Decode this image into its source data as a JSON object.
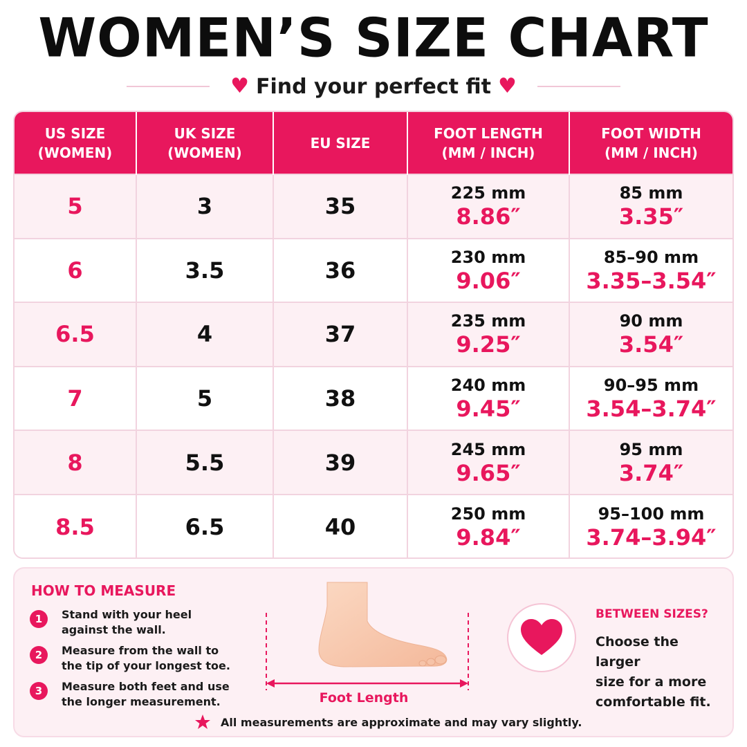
{
  "header": {
    "title": "WOMEN’S SIZE CHART",
    "subtitle": "Find your perfect fit"
  },
  "colors": {
    "accent": "#e8175d",
    "row_alt": "#fdf0f4",
    "border": "#f2d3df",
    "text": "#111111"
  },
  "table": {
    "headers": [
      {
        "line1": "US SIZE",
        "line2": "(WOMEN)"
      },
      {
        "line1": "UK SIZE",
        "line2": "(WOMEN)"
      },
      {
        "line1": "EU SIZE",
        "line2": ""
      },
      {
        "line1": "FOOT LENGTH",
        "line2": "(MM / INCH)"
      },
      {
        "line1": "FOOT WIDTH",
        "line2": "(MM / INCH)"
      }
    ],
    "rows": [
      {
        "us": "5",
        "uk": "3",
        "eu": "35",
        "length_mm": "225 mm",
        "length_in": "8.86″",
        "width_mm": "85 mm",
        "width_in": "3.35″"
      },
      {
        "us": "6",
        "uk": "3.5",
        "eu": "36",
        "length_mm": "230 mm",
        "length_in": "9.06″",
        "width_mm": "85–90 mm",
        "width_in": "3.35–3.54″"
      },
      {
        "us": "6.5",
        "uk": "4",
        "eu": "37",
        "length_mm": "235 mm",
        "length_in": "9.25″",
        "width_mm": "90 mm",
        "width_in": "3.54″"
      },
      {
        "us": "7",
        "uk": "5",
        "eu": "38",
        "length_mm": "240 mm",
        "length_in": "9.45″",
        "width_mm": "90–95 mm",
        "width_in": "3.54–3.74″"
      },
      {
        "us": "8",
        "uk": "5.5",
        "eu": "39",
        "length_mm": "245 mm",
        "length_in": "9.65″",
        "width_mm": "95 mm",
        "width_in": "3.74″"
      },
      {
        "us": "8.5",
        "uk": "6.5",
        "eu": "40",
        "length_mm": "250 mm",
        "length_in": "9.84″",
        "width_mm": "95–100 mm",
        "width_in": "3.74–3.94″"
      }
    ]
  },
  "how_to_measure": {
    "title": "HOW TO MEASURE",
    "steps": [
      {
        "num": "1",
        "line1": "Stand with your heel",
        "line2": "against the wall."
      },
      {
        "num": "2",
        "line1": "Measure from the wall to",
        "line2": "the tip of your longest toe."
      },
      {
        "num": "3",
        "line1": "Measure both feet and use",
        "line2": "the longer measurement."
      }
    ],
    "foot_label": "Foot Length",
    "icon": "foot-illustration"
  },
  "between_sizes": {
    "title": "BETWEEN SIZES?",
    "line1": "Choose the larger",
    "line2": "size for a more",
    "line3": "comfortable fit.",
    "icon": "heart-icon"
  },
  "note": {
    "text": "All measurements are approximate and may vary slightly.",
    "icon": "star-icon"
  }
}
